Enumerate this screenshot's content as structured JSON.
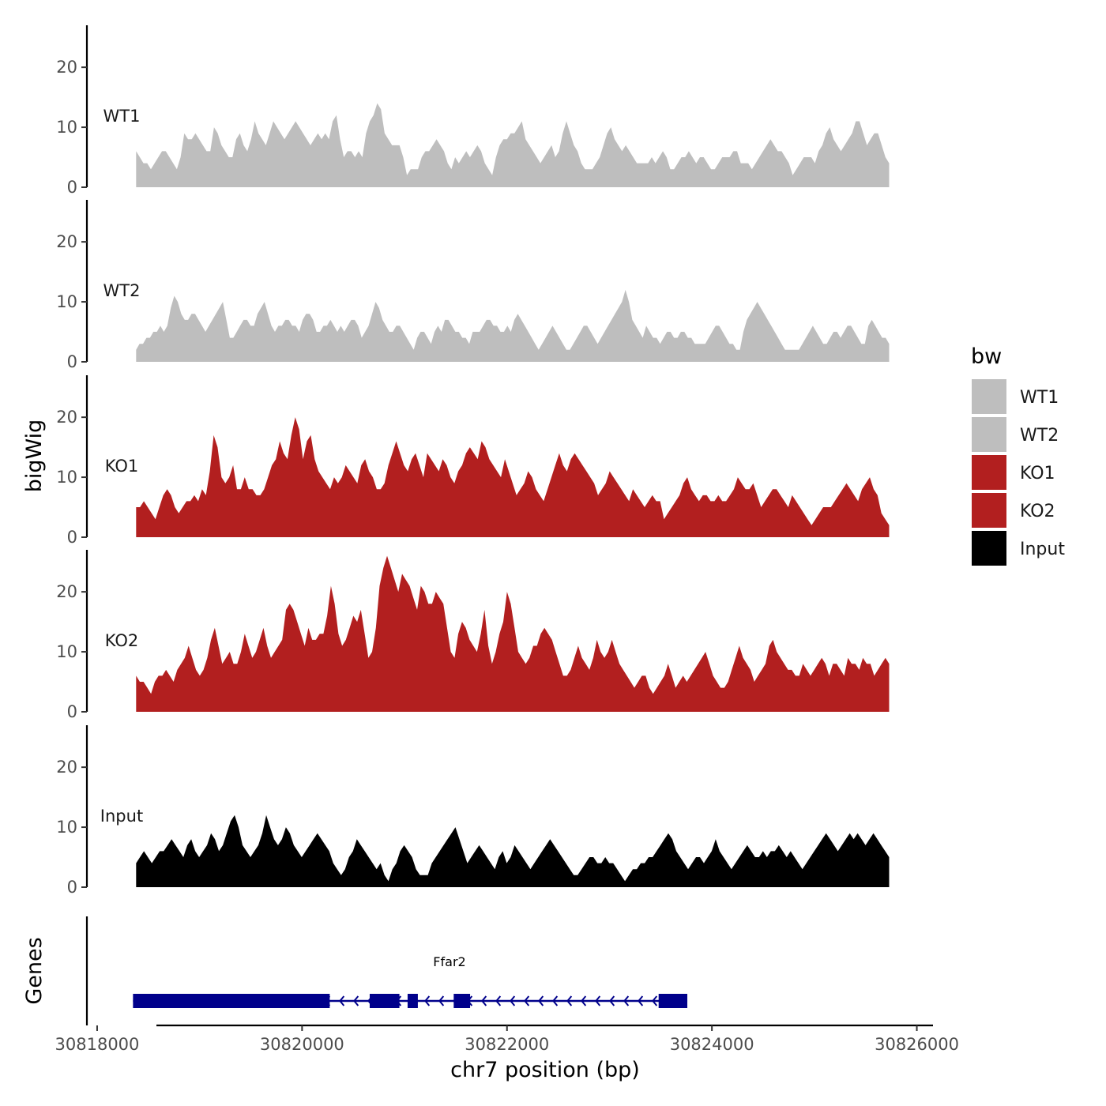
{
  "chart_data": {
    "type": "area",
    "y_axis_title": "bigWig",
    "genes_axis_title": "Genes",
    "x_axis_title": "chr7 position (bp)",
    "x_ticks": [
      "30818000",
      "30820000",
      "30822000",
      "30824000",
      "30826000"
    ],
    "x_tick_values": [
      30818000,
      30820000,
      30822000,
      30824000,
      30826000
    ],
    "xlim": [
      30817900,
      30826150
    ],
    "y_ticks": [
      "0",
      "10",
      "20"
    ],
    "y_tick_values": [
      0,
      10,
      20
    ],
    "ylim": [
      0,
      27
    ],
    "x_start": 30818380,
    "x_end": 30825730,
    "tracks": [
      {
        "name": "WT1",
        "label": "WT1",
        "color": "#bebebe",
        "values": [
          6,
          5,
          4,
          4,
          3,
          4,
          5,
          6,
          6,
          5,
          4,
          3,
          5,
          9,
          8,
          8,
          9,
          8,
          7,
          6,
          6,
          10,
          9,
          7,
          6,
          5,
          5,
          8,
          9,
          7,
          6,
          8,
          11,
          9,
          8,
          7,
          9,
          11,
          10,
          9,
          8,
          9,
          10,
          11,
          10,
          9,
          8,
          7,
          8,
          9,
          8,
          9,
          8,
          11,
          12,
          8,
          5,
          6,
          6,
          5,
          6,
          5,
          9,
          11,
          12,
          14,
          13,
          9,
          8,
          7,
          7,
          7,
          5,
          2,
          3,
          3,
          3,
          5,
          6,
          6,
          7,
          8,
          7,
          6,
          4,
          3,
          5,
          4,
          5,
          6,
          5,
          6,
          7,
          6,
          4,
          3,
          2,
          5,
          7,
          8,
          8,
          9,
          9,
          10,
          11,
          8,
          7,
          6,
          5,
          4,
          5,
          6,
          7,
          5,
          6,
          9,
          11,
          9,
          7,
          6,
          4,
          3,
          3,
          3,
          4,
          5,
          7,
          9,
          10,
          8,
          7,
          6,
          7,
          6,
          5,
          4,
          4,
          4,
          4,
          5,
          4,
          5,
          6,
          5,
          3,
          3,
          4,
          5,
          5,
          6,
          5,
          4,
          5,
          5,
          4,
          3,
          3,
          4,
          5,
          5,
          5,
          6,
          6,
          4,
          4,
          4,
          3,
          4,
          5,
          6,
          7,
          8,
          7,
          6,
          6,
          5,
          4,
          2,
          3,
          4,
          5,
          5,
          5,
          4,
          6,
          7,
          9,
          10,
          8,
          7,
          6,
          7,
          8,
          9,
          11,
          11,
          9,
          7,
          8,
          9,
          9,
          7,
          5,
          4
        ],
        "source": "WT1"
      },
      {
        "name": "WT2",
        "label": "WT2",
        "color": "#bebebe",
        "values": [
          2,
          3,
          3,
          4,
          4,
          5,
          5,
          6,
          5,
          6,
          9,
          11,
          10,
          8,
          7,
          7,
          8,
          8,
          7,
          6,
          5,
          6,
          7,
          8,
          9,
          10,
          7,
          4,
          4,
          5,
          6,
          7,
          7,
          6,
          6,
          8,
          9,
          10,
          8,
          6,
          5,
          6,
          6,
          7,
          7,
          6,
          6,
          5,
          7,
          8,
          8,
          7,
          5,
          5,
          6,
          6,
          7,
          6,
          5,
          6,
          5,
          6,
          7,
          7,
          6,
          4,
          5,
          6,
          8,
          10,
          9,
          7,
          6,
          5,
          5,
          6,
          6,
          5,
          4,
          3,
          2,
          4,
          5,
          5,
          4,
          3,
          5,
          6,
          5,
          7,
          7,
          6,
          5,
          5,
          4,
          4,
          3,
          5,
          5,
          5,
          6,
          7,
          7,
          6,
          6,
          5,
          5,
          6,
          5,
          7,
          8,
          7,
          6,
          5,
          4,
          3,
          2,
          3,
          4,
          5,
          6,
          5,
          4,
          3,
          2,
          2,
          3,
          4,
          5,
          6,
          6,
          5,
          4,
          3,
          4,
          5,
          6,
          7,
          8,
          9,
          10,
          12,
          10,
          7,
          6,
          5,
          4,
          6,
          5,
          4,
          4,
          3,
          4,
          5,
          5,
          4,
          4,
          5,
          5,
          4,
          4,
          3,
          3,
          3,
          3,
          4,
          5,
          6,
          6,
          5,
          4,
          3,
          3,
          2,
          2,
          5,
          7,
          8,
          9,
          10,
          9,
          8,
          7,
          6,
          5,
          4,
          3,
          2,
          2,
          2,
          2,
          2,
          3,
          4,
          5,
          6,
          5,
          4,
          3,
          3,
          4,
          5,
          5,
          4,
          5,
          6,
          6,
          5,
          4,
          3,
          3,
          6,
          7,
          6,
          5,
          4,
          4,
          3
        ]
      },
      {
        "name": "KO1",
        "label": "KO1",
        "color": "#b21f1f",
        "values": [
          5,
          5,
          6,
          5,
          4,
          3,
          5,
          7,
          8,
          7,
          5,
          4,
          5,
          6,
          6,
          7,
          6,
          8,
          7,
          11,
          17,
          15,
          10,
          9,
          10,
          12,
          8,
          8,
          10,
          8,
          8,
          7,
          7,
          8,
          10,
          12,
          13,
          16,
          14,
          13,
          17,
          20,
          18,
          13,
          16,
          17,
          13,
          11,
          10,
          9,
          8,
          10,
          9,
          10,
          12,
          11,
          10,
          9,
          12,
          13,
          11,
          10,
          8,
          8,
          9,
          12,
          14,
          16,
          14,
          12,
          11,
          13,
          14,
          12,
          10,
          14,
          13,
          12,
          11,
          13,
          12,
          10,
          9,
          11,
          12,
          14,
          15,
          14,
          13,
          16,
          15,
          13,
          12,
          11,
          10,
          13,
          11,
          9,
          7,
          8,
          9,
          11,
          10,
          8,
          7,
          6,
          8,
          10,
          12,
          14,
          12,
          11,
          13,
          14,
          13,
          12,
          11,
          10,
          9,
          7,
          8,
          9,
          11,
          10,
          9,
          8,
          7,
          6,
          8,
          7,
          6,
          5,
          6,
          7,
          6,
          6,
          3,
          4,
          5,
          6,
          7,
          9,
          10,
          8,
          7,
          6,
          7,
          7,
          6,
          6,
          7,
          6,
          6,
          7,
          8,
          10,
          9,
          8,
          8,
          9,
          7,
          5,
          6,
          7,
          8,
          8,
          7,
          6,
          5,
          7,
          6,
          5,
          4,
          3,
          2,
          3,
          4,
          5,
          5,
          5,
          6,
          7,
          8,
          9,
          8,
          7,
          6,
          8,
          9,
          10,
          8,
          7,
          4,
          3,
          2
        ]
      },
      {
        "name": "KO2",
        "label": "KO2",
        "color": "#b21f1f",
        "values": [
          6,
          5,
          5,
          4,
          3,
          5,
          6,
          6,
          7,
          6,
          5,
          7,
          8,
          9,
          11,
          9,
          7,
          6,
          7,
          9,
          12,
          14,
          11,
          8,
          9,
          10,
          8,
          8,
          10,
          13,
          11,
          9,
          10,
          12,
          14,
          11,
          9,
          10,
          11,
          12,
          17,
          18,
          17,
          15,
          13,
          11,
          14,
          12,
          12,
          13,
          13,
          16,
          21,
          18,
          13,
          11,
          12,
          14,
          16,
          15,
          17,
          13,
          9,
          10,
          14,
          21,
          24,
          26,
          24,
          22,
          20,
          23,
          22,
          21,
          19,
          17,
          21,
          20,
          18,
          18,
          20,
          19,
          18,
          14,
          10,
          9,
          13,
          15,
          14,
          12,
          11,
          10,
          13,
          17,
          11,
          8,
          10,
          13,
          15,
          20,
          18,
          14,
          10,
          9,
          8,
          9,
          11,
          11,
          13,
          14,
          13,
          12,
          10,
          8,
          6,
          6,
          7,
          9,
          11,
          9,
          8,
          7,
          9,
          12,
          10,
          9,
          10,
          12,
          10,
          8,
          7,
          6,
          5,
          4,
          5,
          6,
          6,
          4,
          3,
          4,
          5,
          6,
          8,
          6,
          4,
          5,
          6,
          5,
          6,
          7,
          8,
          9,
          10,
          8,
          6,
          5,
          4,
          4,
          5,
          7,
          9,
          11,
          9,
          8,
          7,
          5,
          6,
          7,
          8,
          11,
          12,
          10,
          9,
          8,
          7,
          7,
          6,
          6,
          8,
          7,
          6,
          7,
          8,
          9,
          8,
          6,
          8,
          8,
          7,
          6,
          9,
          8,
          8,
          7,
          9,
          8,
          8,
          6,
          7,
          8,
          9,
          8
        ]
      },
      {
        "name": "Input",
        "label": "Input",
        "color": "#000000",
        "values": [
          4,
          5,
          6,
          5,
          4,
          5,
          6,
          6,
          7,
          8,
          7,
          6,
          5,
          7,
          8,
          6,
          5,
          6,
          7,
          9,
          8,
          6,
          7,
          9,
          11,
          12,
          10,
          7,
          6,
          5,
          6,
          7,
          9,
          12,
          10,
          8,
          7,
          8,
          10,
          9,
          7,
          6,
          5,
          6,
          7,
          8,
          9,
          8,
          7,
          6,
          4,
          3,
          2,
          3,
          5,
          6,
          8,
          7,
          6,
          5,
          4,
          3,
          4,
          2,
          1,
          3,
          4,
          6,
          7,
          6,
          5,
          3,
          2,
          2,
          2,
          4,
          5,
          6,
          7,
          8,
          9,
          10,
          8,
          6,
          4,
          5,
          6,
          7,
          6,
          5,
          4,
          3,
          5,
          6,
          4,
          5,
          7,
          6,
          5,
          4,
          3,
          4,
          5,
          6,
          7,
          8,
          7,
          6,
          5,
          4,
          3,
          2,
          2,
          3,
          4,
          5,
          5,
          4,
          4,
          5,
          4,
          4,
          3,
          2,
          1,
          2,
          3,
          3,
          4,
          4,
          5,
          5,
          6,
          7,
          8,
          9,
          8,
          6,
          5,
          4,
          3,
          4,
          5,
          5,
          4,
          5,
          6,
          8,
          6,
          5,
          4,
          3,
          4,
          5,
          6,
          7,
          6,
          5,
          5,
          6,
          5,
          6,
          6,
          7,
          6,
          5,
          6,
          5,
          4,
          3,
          4,
          5,
          6,
          7,
          8,
          9,
          8,
          7,
          6,
          7,
          8,
          9,
          8,
          9,
          8,
          7,
          8,
          9,
          8,
          7,
          6,
          5
        ]
      }
    ],
    "legend": {
      "title": "bw",
      "entries": [
        {
          "label": "WT1",
          "color": "#bebebe"
        },
        {
          "label": "WT2",
          "color": "#bebebe"
        },
        {
          "label": "KO1",
          "color": "#b21f1f"
        },
        {
          "label": "KO2",
          "color": "#b21f1f"
        },
        {
          "label": "Input",
          "color": "#000000"
        }
      ]
    },
    "gene": {
      "name": "Ffar2",
      "color": "#00008b",
      "strand": "-",
      "start": 30818350,
      "end": 30823760,
      "exons": [
        {
          "start": 30818350,
          "end": 30820270
        },
        {
          "start": 30820660,
          "end": 30820950
        },
        {
          "start": 30821030,
          "end": 30821130
        },
        {
          "start": 30821480,
          "end": 30821640
        },
        {
          "start": 30823480,
          "end": 30823760
        }
      ]
    }
  }
}
